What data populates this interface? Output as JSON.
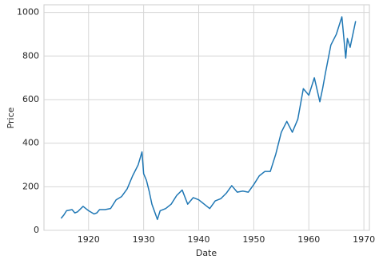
{
  "chart_data": {
    "type": "line",
    "xlabel": "Date",
    "ylabel": "Price",
    "x": [
      1915,
      1915.5,
      1916,
      1917,
      1917.5,
      1918,
      1919,
      1919.5,
      1920,
      1921,
      1921.5,
      1922,
      1923,
      1924,
      1925,
      1926,
      1927,
      1928,
      1929,
      1929.7,
      1930,
      1930.5,
      1931,
      1931.5,
      1932.5,
      1933,
      1934,
      1935,
      1936,
      1937,
      1938,
      1939,
      1940,
      1941,
      1942,
      1943,
      1944,
      1945,
      1946,
      1947,
      1948,
      1949,
      1950,
      1951,
      1952,
      1953,
      1954,
      1955,
      1956,
      1957,
      1958,
      1959,
      1960,
      1961,
      1962,
      1962.5,
      1963,
      1964,
      1965,
      1966,
      1966.7,
      1967,
      1967.5,
      1968,
      1968.5
    ],
    "values": [
      55,
      70,
      90,
      95,
      80,
      85,
      110,
      100,
      90,
      75,
      80,
      95,
      95,
      100,
      140,
      155,
      190,
      250,
      300,
      360,
      260,
      230,
      180,
      120,
      50,
      90,
      100,
      120,
      160,
      185,
      120,
      150,
      140,
      120,
      100,
      135,
      145,
      170,
      205,
      175,
      180,
      175,
      210,
      250,
      270,
      270,
      350,
      450,
      500,
      450,
      510,
      650,
      620,
      700,
      590,
      650,
      720,
      850,
      900,
      980,
      790,
      880,
      840,
      900,
      960
    ],
    "color": "#1f77b4",
    "xlim": [
      1911.9,
      1971
    ],
    "xticks": [
      1920,
      1930,
      1940,
      1950,
      1960,
      1970
    ],
    "ylim": [
      0,
      1035
    ],
    "yticks": [
      0,
      200,
      400,
      600,
      800,
      1000
    ],
    "grid": true
  }
}
